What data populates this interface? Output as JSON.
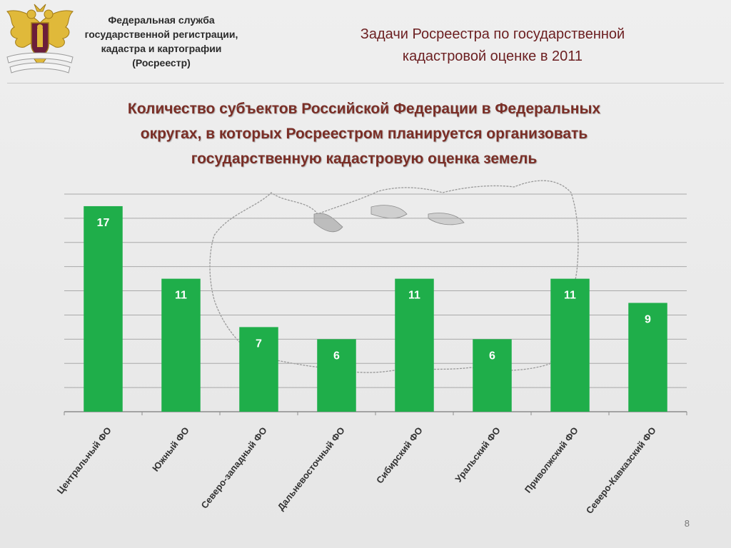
{
  "header": {
    "org_lines": [
      "Федеральная служба",
      "государственной регистрации,",
      "кадастра и картографии",
      "(Росреестр)"
    ],
    "slide_title_lines": [
      "Задачи Росреестра по государственной",
      "кадастровой оценке в 2011"
    ]
  },
  "page_number": "8",
  "colors": {
    "bar": "#1fae4a",
    "bar_label": "#ffffff",
    "title": "#7a2e26",
    "slide_title": "#6b1e20",
    "grid": "#a9a9a9",
    "emblem_gold": "#e0b93a"
  },
  "icons": [
    "double-headed-eagle-emblem-icon",
    "russia-map-outline-icon"
  ],
  "chart_data": {
    "type": "bar",
    "title_lines": [
      "Количество субъектов Российской Федерации в Федеральных",
      "округах, в которых Росреестром планируется организовать",
      "государственную кадастровую оценка земель"
    ],
    "categories": [
      "Центральный ФО",
      "Южный ФО",
      "Северо-западный ФО",
      "Дальневосточный ФО",
      "Сибирский ФО",
      "Уральский ФО",
      "Приволжский ФО",
      "Северо-Кавказский ФО"
    ],
    "values": [
      17,
      11,
      7,
      6,
      11,
      6,
      11,
      9
    ],
    "ylim": [
      0,
      18
    ],
    "grid": true,
    "data_labels": true,
    "legend": "none"
  }
}
